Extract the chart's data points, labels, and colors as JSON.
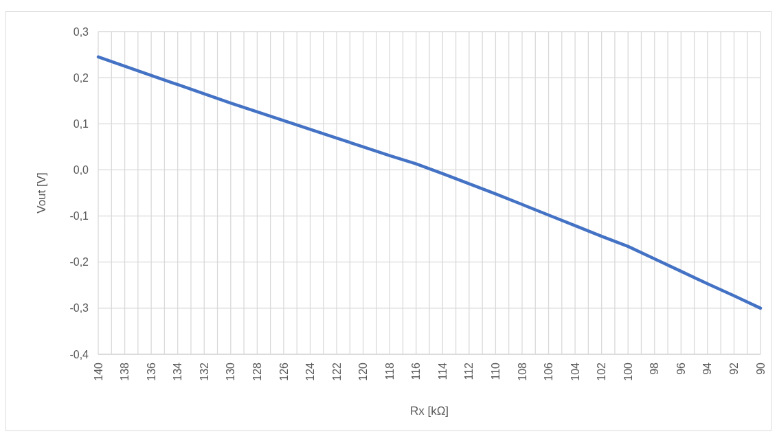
{
  "chart_data": {
    "type": "line",
    "xlabel": "Rx [kΩ]",
    "ylabel": "Vout [V]",
    "x": [
      140,
      138,
      136,
      134,
      132,
      130,
      128,
      126,
      124,
      122,
      120,
      118,
      116,
      114,
      112,
      110,
      108,
      106,
      104,
      102,
      100,
      98,
      96,
      94,
      92,
      90
    ],
    "series": [
      {
        "color": "#4472c4",
        "values": [
          0.245,
          0.225,
          0.205,
          0.185,
          0.165,
          0.145,
          0.126,
          0.107,
          0.088,
          0.069,
          0.05,
          0.031,
          0.013,
          -0.008,
          -0.03,
          -0.052,
          -0.075,
          -0.098,
          -0.121,
          -0.144,
          -0.166,
          -0.193,
          -0.22,
          -0.247,
          -0.273,
          -0.3
        ]
      }
    ],
    "xlim": [
      140,
      90
    ],
    "xticks": [
      140,
      {
        "value": 139,
        "label": null
      },
      138,
      {
        "value": 137,
        "label": null
      },
      136,
      {
        "value": 135,
        "label": null
      },
      134,
      {
        "value": 133,
        "label": null
      },
      132,
      {
        "value": 131,
        "label": null
      },
      130,
      {
        "value": 129,
        "label": null
      },
      128,
      {
        "value": 127,
        "label": null
      },
      126,
      {
        "value": 125,
        "label": null
      },
      124,
      {
        "value": 123,
        "label": null
      },
      122,
      {
        "value": 121,
        "label": null
      },
      120,
      {
        "value": 119,
        "label": null
      },
      118,
      {
        "value": 117,
        "label": null
      },
      116,
      {
        "value": 115,
        "label": null
      },
      114,
      {
        "value": 113,
        "label": null
      },
      112,
      {
        "value": 111,
        "label": null
      },
      110,
      {
        "value": 109,
        "label": null
      },
      108,
      {
        "value": 107,
        "label": null
      },
      106,
      {
        "value": 105,
        "label": null
      },
      104,
      {
        "value": 103,
        "label": null
      },
      102,
      {
        "value": 101,
        "label": null
      },
      100,
      {
        "value": 99,
        "label": null
      },
      98,
      {
        "value": 97,
        "label": null
      },
      96,
      {
        "value": 95,
        "label": null
      },
      94,
      {
        "value": 93,
        "label": null
      },
      92,
      {
        "value": 91,
        "label": null
      },
      90
    ],
    "ylim": [
      -0.4,
      0.3
    ],
    "yticks": [
      {
        "value": -0.4,
        "label": "-0,4"
      },
      {
        "value": -0.3,
        "label": "-0,3"
      },
      {
        "value": -0.2,
        "label": "-0,2"
      },
      {
        "value": -0.1,
        "label": "-0,1"
      },
      {
        "value": 0,
        "label": "0,0"
      },
      {
        "value": 0.1,
        "label": "0,1"
      },
      {
        "value": 0.2,
        "label": "0,2"
      },
      {
        "value": 0.3,
        "label": "0,3"
      }
    ],
    "grid": true,
    "marker": "none",
    "line_style": "solid"
  }
}
